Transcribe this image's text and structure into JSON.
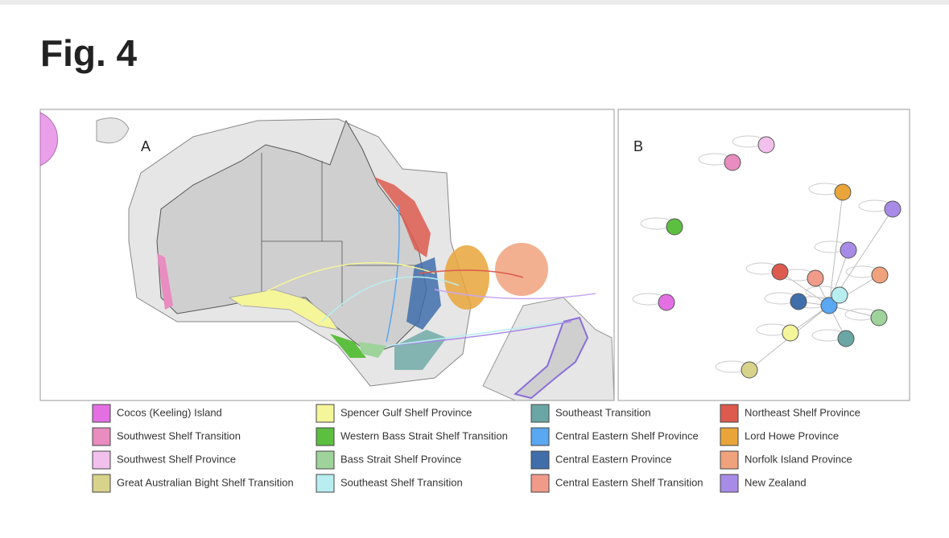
{
  "title": "Fig. 4",
  "panels": {
    "a": "A",
    "b": "B"
  },
  "legend": [
    {
      "label": "Cocos (Keeling) Island",
      "color": "#e36fe3"
    },
    {
      "label": "Southwest Shelf Transition",
      "color": "#e98cc0"
    },
    {
      "label": "Southwest Shelf Province",
      "color": "#f2c0ec"
    },
    {
      "label": "Great Australian Bight Shelf Transition",
      "color": "#d8d38a"
    },
    {
      "label": "Spencer Gulf Shelf Province",
      "color": "#f5f59a"
    },
    {
      "label": "Western Bass Strait Shelf Transition",
      "color": "#5cbf3f"
    },
    {
      "label": "Bass Strait Shelf Province",
      "color": "#9ed39b"
    },
    {
      "label": "Southeast Shelf Transition",
      "color": "#b8eef0"
    },
    {
      "label": "Southeast Transition",
      "color": "#6aa7a4"
    },
    {
      "label": "Central Eastern Shelf Province",
      "color": "#5aa7f2"
    },
    {
      "label": "Central Eastern Province",
      "color": "#3f6eab"
    },
    {
      "label": "Central Eastern Shelf Transition",
      "color": "#f09a8a"
    },
    {
      "label": "Northeast Shelf Province",
      "color": "#dd5a4f"
    },
    {
      "label": "Lord Howe Province",
      "color": "#e9a53a"
    },
    {
      "label": "Norfolk Island Province",
      "color": "#f0a27c"
    },
    {
      "label": "New Zealand",
      "color": "#a88be6"
    }
  ]
}
